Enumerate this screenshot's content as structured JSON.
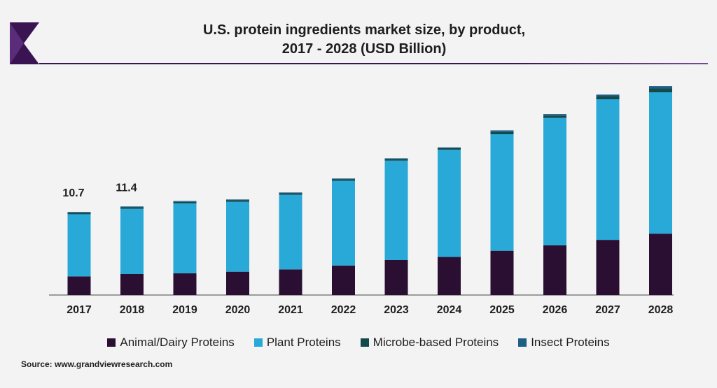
{
  "chart_data": {
    "type": "bar",
    "stacked": true,
    "title_line1": "U.S. protein ingredients market size, by product,",
    "title_line2": "2017 - 2028 (USD Billion)",
    "categories": [
      "2017",
      "2018",
      "2019",
      "2020",
      "2021",
      "2022",
      "2023",
      "2024",
      "2025",
      "2026",
      "2027",
      "2028"
    ],
    "series": [
      {
        "name": "Animal/Dairy Proteins",
        "color": "#2a0f33",
        "values": [
          2.4,
          2.7,
          2.8,
          3.0,
          3.3,
          3.8,
          4.5,
          4.9,
          5.7,
          6.4,
          7.1,
          7.9
        ]
      },
      {
        "name": "Plant Proteins",
        "color": "#29a9d8",
        "values": [
          8.0,
          8.4,
          9.0,
          9.0,
          9.6,
          10.9,
          12.8,
          13.8,
          15.0,
          16.4,
          18.1,
          18.2
        ]
      },
      {
        "name": "Microbe-based Proteins",
        "color": "#154a4d",
        "values": [
          0.2,
          0.2,
          0.2,
          0.2,
          0.2,
          0.2,
          0.2,
          0.2,
          0.3,
          0.3,
          0.4,
          0.5
        ]
      },
      {
        "name": "Insect Proteins",
        "color": "#1d5f86",
        "values": [
          0.1,
          0.1,
          0.1,
          0.1,
          0.1,
          0.1,
          0.1,
          0.1,
          0.2,
          0.2,
          0.2,
          0.3
        ]
      }
    ],
    "data_labels": [
      {
        "category": "2017",
        "text": "10.7"
      },
      {
        "category": "2018",
        "text": "11.4"
      }
    ],
    "ylim": [
      0,
      27
    ],
    "grid": false,
    "legend_position": "bottom"
  },
  "source": "Source: www.grandviewresearch.com",
  "colors": {
    "brand": "#3a1352",
    "axis": "#444444"
  }
}
